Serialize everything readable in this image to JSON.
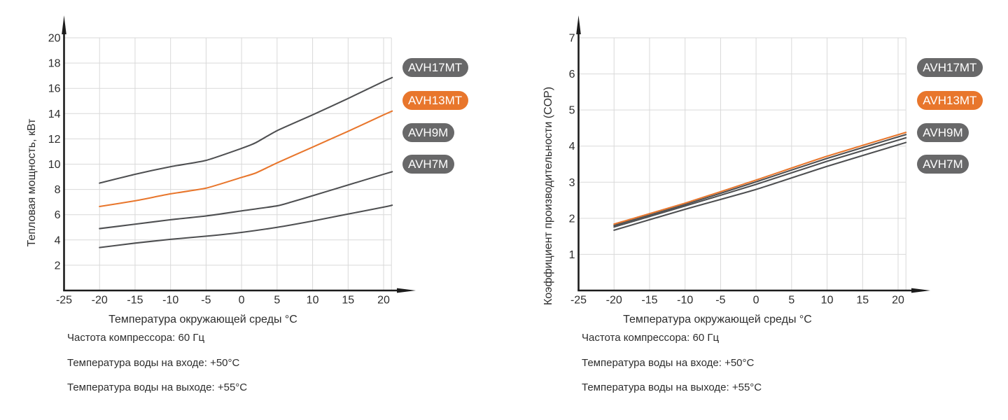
{
  "page": {
    "background": "#ffffff"
  },
  "colors": {
    "orange": "#E8762C",
    "curve_gray": "#4E4F51",
    "pill_gray": "#686869",
    "grid": "#D9D9D9",
    "axis": "#1C1C1C",
    "text": "#2D2D2D"
  },
  "legend": {
    "items": [
      {
        "label": "AVH17MT",
        "highlight": false
      },
      {
        "label": "AVH13MT",
        "highlight": true
      },
      {
        "label": "AVH9M",
        "highlight": false
      },
      {
        "label": "AVH7M",
        "highlight": false
      }
    ]
  },
  "footers": {
    "line1": "Частота компрессора: 60 Гц",
    "line2": "Температура воды на входе: +50°C",
    "line3": "Температура воды на выходе: +55°C"
  },
  "chart_data": [
    {
      "type": "line",
      "title": "",
      "xlabel": "Температура окружающей среды °C",
      "ylabel": "Тепловая мощность, кВт",
      "xlim": [
        -25,
        21.1
      ],
      "ylim": [
        0,
        20
      ],
      "x_ticks": [
        -25,
        -20,
        -15,
        -10,
        -5,
        0,
        5,
        10,
        15,
        20
      ],
      "y_ticks": [
        2,
        4,
        6,
        8,
        10,
        12,
        14,
        16,
        18,
        20
      ],
      "grid": true,
      "legend_position": "right",
      "series": [
        {
          "name": "AVH17MT",
          "color": "gray",
          "points": [
            [
              -20,
              8.5
            ],
            [
              -15,
              9.2
            ],
            [
              -10,
              9.8
            ],
            [
              -5,
              10.3
            ],
            [
              0,
              11.25
            ],
            [
              2,
              11.7
            ],
            [
              5,
              12.65
            ],
            [
              10,
              13.9
            ],
            [
              15,
              15.2
            ],
            [
              20,
              16.55
            ],
            [
              21.2,
              16.85
            ]
          ]
        },
        {
          "name": "AVH13MT",
          "color": "orange",
          "points": [
            [
              -20,
              6.65
            ],
            [
              -15,
              7.1
            ],
            [
              -10,
              7.65
            ],
            [
              -5,
              8.1
            ],
            [
              0,
              8.95
            ],
            [
              2,
              9.3
            ],
            [
              5,
              10.1
            ],
            [
              10,
              11.35
            ],
            [
              15,
              12.6
            ],
            [
              20,
              13.9
            ],
            [
              21.2,
              14.2
            ]
          ]
        },
        {
          "name": "AVH9M",
          "color": "gray",
          "points": [
            [
              -20,
              4.9
            ],
            [
              -15,
              5.25
            ],
            [
              -10,
              5.6
            ],
            [
              -5,
              5.9
            ],
            [
              0,
              6.3
            ],
            [
              5,
              6.7
            ],
            [
              7,
              7.0
            ],
            [
              10,
              7.5
            ],
            [
              15,
              8.35
            ],
            [
              20,
              9.2
            ],
            [
              21.2,
              9.4
            ]
          ]
        },
        {
          "name": "AVH7M",
          "color": "gray",
          "points": [
            [
              -20,
              3.4
            ],
            [
              -15,
              3.75
            ],
            [
              -10,
              4.05
            ],
            [
              -5,
              4.3
            ],
            [
              0,
              4.6
            ],
            [
              5,
              5.0
            ],
            [
              10,
              5.5
            ],
            [
              15,
              6.05
            ],
            [
              20,
              6.6
            ],
            [
              21.2,
              6.75
            ]
          ]
        }
      ]
    },
    {
      "type": "line",
      "title": "",
      "xlabel": "Температура окружающей среды °C",
      "ylabel": "Коэффициент производительности (COP)",
      "xlim": [
        -25,
        21.1
      ],
      "ylim": [
        0,
        7
      ],
      "x_ticks": [
        -25,
        -20,
        -15,
        -10,
        -5,
        0,
        5,
        10,
        15,
        20
      ],
      "y_ticks": [
        1,
        2,
        3,
        4,
        5,
        6,
        7
      ],
      "grid": true,
      "legend_position": "right",
      "series": [
        {
          "name": "AVH17MT",
          "color": "gray",
          "points": [
            [
              -20,
              1.8
            ],
            [
              -10,
              2.38
            ],
            [
              0,
              3.01
            ],
            [
              10,
              3.66
            ],
            [
              21.1,
              4.32
            ]
          ]
        },
        {
          "name": "AVH13MT",
          "color": "orange",
          "points": [
            [
              -20,
              1.84
            ],
            [
              -10,
              2.42
            ],
            [
              0,
              3.06
            ],
            [
              10,
              3.72
            ],
            [
              21.1,
              4.38
            ]
          ]
        },
        {
          "name": "AVH9M",
          "color": "gray",
          "points": [
            [
              -20,
              1.76
            ],
            [
              -10,
              2.34
            ],
            [
              0,
              2.94
            ],
            [
              10,
              3.58
            ],
            [
              21.1,
              4.23
            ]
          ]
        },
        {
          "name": "AVH7M",
          "color": "gray",
          "points": [
            [
              -20,
              1.67
            ],
            [
              -10,
              2.25
            ],
            [
              0,
              2.8
            ],
            [
              10,
              3.44
            ],
            [
              21.1,
              4.1
            ]
          ]
        }
      ]
    }
  ]
}
